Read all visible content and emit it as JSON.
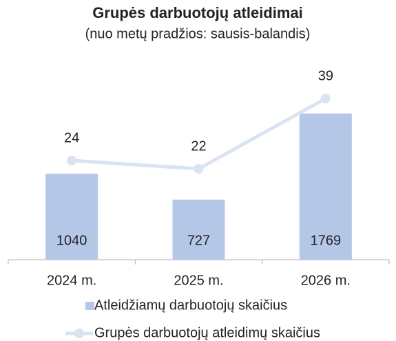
{
  "chart_data": {
    "type": "bar_line",
    "title": "Grupės darbuotojų atleidimai",
    "subtitle": "(nuo metų pradžios: sausis-balandis)",
    "categories": [
      "2024 m.",
      "2025 m.",
      "2026 m."
    ],
    "series": [
      {
        "name": "Atleidžiamų darbuotojų skaičius",
        "type": "bar",
        "color": "#b4c7e7",
        "values": [
          1040,
          727,
          1769
        ]
      },
      {
        "name": "Grupės darbuotojų atleidimų skaičius",
        "type": "line",
        "axis": "y2",
        "color": "#dae3f3",
        "values": [
          24,
          22,
          39
        ]
      }
    ],
    "ylim": [
      0,
      2000
    ],
    "y2lim": [
      0,
      40
    ],
    "legend": "bottom"
  }
}
